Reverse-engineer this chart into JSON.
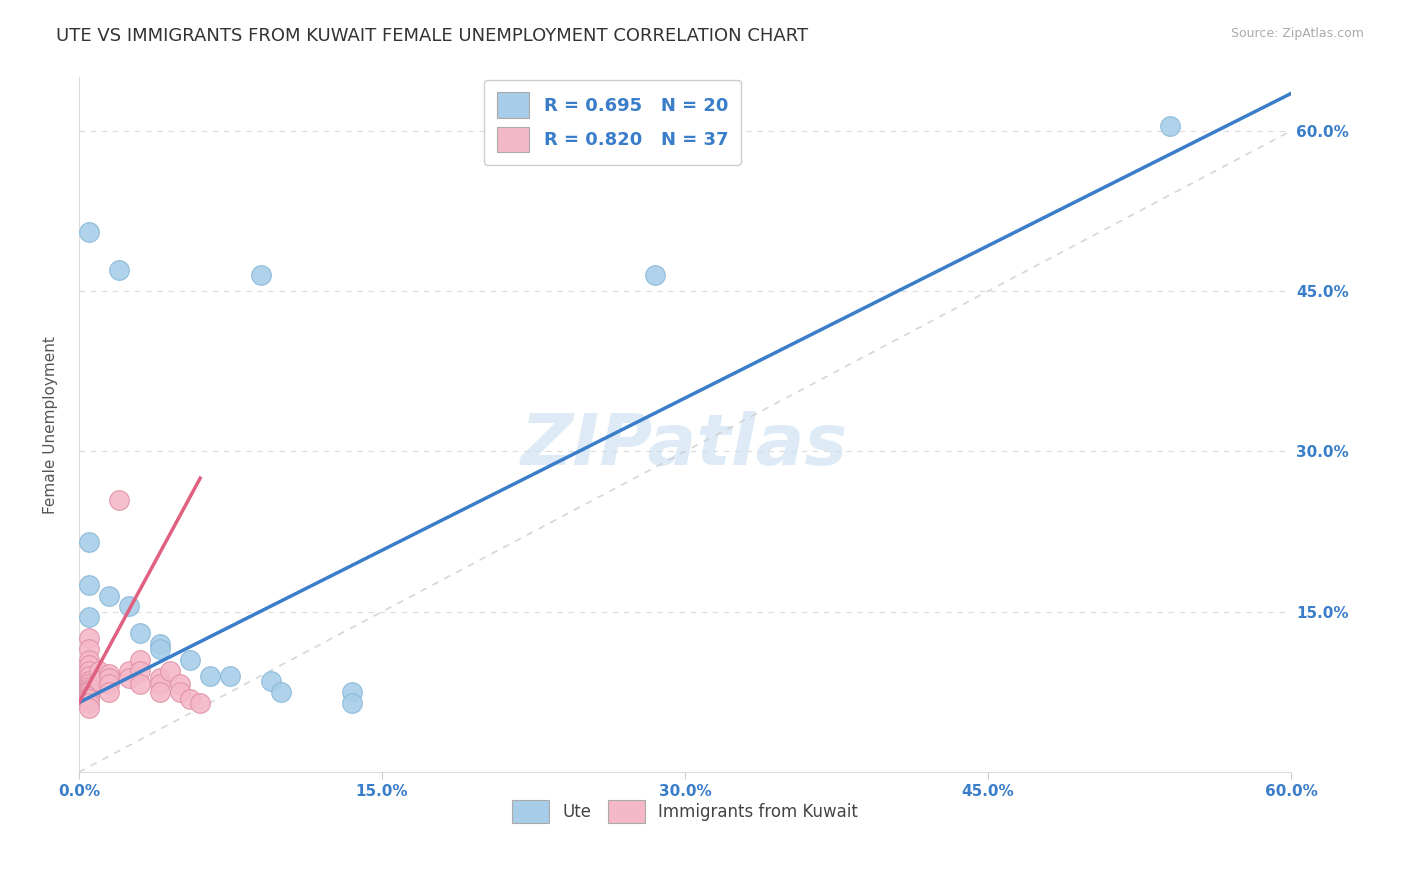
{
  "title": "UTE VS IMMIGRANTS FROM KUWAIT FEMALE UNEMPLOYMENT CORRELATION CHART",
  "source": "Source: ZipAtlas.com",
  "ylabel": "Female Unemployment",
  "xlim": [
    0.0,
    0.6
  ],
  "ylim": [
    0.0,
    0.65
  ],
  "xticks": [
    0.0,
    0.15,
    0.3,
    0.45,
    0.6
  ],
  "xtick_labels": [
    "0.0%",
    "15.0%",
    "30.0%",
    "45.0%",
    "60.0%"
  ],
  "yticks": [
    0.0,
    0.15,
    0.3,
    0.45,
    0.6
  ],
  "ytick_labels_right": [
    "",
    "15.0%",
    "30.0%",
    "45.0%",
    "60.0%"
  ],
  "watermark": "ZIPatlas",
  "legend_r1": "R = 0.695   N = 20",
  "legend_r2": "R = 0.820   N = 37",
  "blue_color": "#a8cde8",
  "pink_color": "#f4b8c8",
  "blue_line_color": "#3a7dc9",
  "pink_line_color": "#e06080",
  "diag_color": "#cccccc",
  "grid_color": "#cccccc",
  "ute_points": [
    [
      0.005,
      0.505
    ],
    [
      0.02,
      0.47
    ],
    [
      0.09,
      0.465
    ],
    [
      0.285,
      0.465
    ],
    [
      0.005,
      0.215
    ],
    [
      0.005,
      0.175
    ],
    [
      0.015,
      0.165
    ],
    [
      0.025,
      0.155
    ],
    [
      0.005,
      0.145
    ],
    [
      0.03,
      0.13
    ],
    [
      0.04,
      0.12
    ],
    [
      0.04,
      0.115
    ],
    [
      0.055,
      0.105
    ],
    [
      0.065,
      0.09
    ],
    [
      0.075,
      0.09
    ],
    [
      0.095,
      0.085
    ],
    [
      0.1,
      0.075
    ],
    [
      0.135,
      0.075
    ],
    [
      0.135,
      0.065
    ],
    [
      0.54,
      0.605
    ]
  ],
  "kuwait_points": [
    [
      0.005,
      0.125
    ],
    [
      0.005,
      0.115
    ],
    [
      0.005,
      0.105
    ],
    [
      0.005,
      0.1
    ],
    [
      0.005,
      0.095
    ],
    [
      0.005,
      0.09
    ],
    [
      0.005,
      0.085
    ],
    [
      0.005,
      0.082
    ],
    [
      0.005,
      0.08
    ],
    [
      0.005,
      0.078
    ],
    [
      0.005,
      0.076
    ],
    [
      0.005,
      0.075
    ],
    [
      0.005,
      0.072
    ],
    [
      0.005,
      0.07
    ],
    [
      0.005,
      0.068
    ],
    [
      0.005,
      0.065
    ],
    [
      0.005,
      0.06
    ],
    [
      0.01,
      0.095
    ],
    [
      0.01,
      0.085
    ],
    [
      0.015,
      0.092
    ],
    [
      0.015,
      0.088
    ],
    [
      0.015,
      0.082
    ],
    [
      0.015,
      0.075
    ],
    [
      0.02,
      0.255
    ],
    [
      0.025,
      0.095
    ],
    [
      0.025,
      0.088
    ],
    [
      0.03,
      0.105
    ],
    [
      0.03,
      0.095
    ],
    [
      0.03,
      0.082
    ],
    [
      0.04,
      0.088
    ],
    [
      0.04,
      0.082
    ],
    [
      0.04,
      0.075
    ],
    [
      0.045,
      0.095
    ],
    [
      0.05,
      0.082
    ],
    [
      0.05,
      0.075
    ],
    [
      0.055,
      0.068
    ],
    [
      0.06,
      0.065
    ]
  ],
  "ute_line": [
    [
      0.0,
      0.065
    ],
    [
      0.6,
      0.635
    ]
  ],
  "kuwait_line": [
    [
      0.0,
      0.065
    ],
    [
      0.06,
      0.275
    ]
  ],
  "background_color": "#ffffff",
  "title_fontsize": 13,
  "axis_fontsize": 11,
  "tick_fontsize": 11,
  "tick_color": "#3a7dc9",
  "watermark_fontsize": 52,
  "watermark_color": "#c8dff0",
  "watermark_alpha": 0.6,
  "legend_fontsize": 13
}
